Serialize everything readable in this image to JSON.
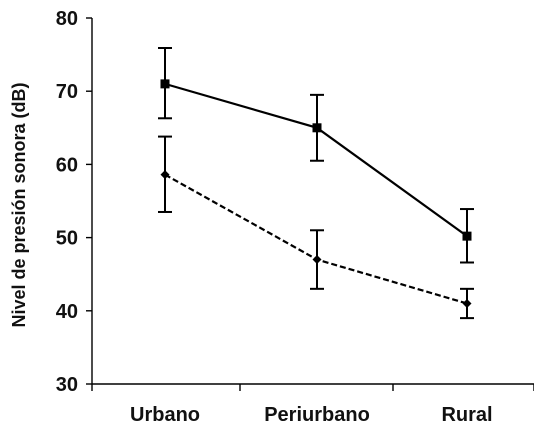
{
  "chart_data": {
    "type": "line",
    "title": "",
    "xlabel": "",
    "ylabel": "Nivel de presión sonora (dB)",
    "categories": [
      "Urbano",
      "Periurbano",
      "Rural"
    ],
    "ylim": [
      30,
      80
    ],
    "yticks": [
      30,
      40,
      50,
      60,
      70,
      80
    ],
    "grid": false,
    "legend": "none",
    "series": [
      {
        "style": "solid",
        "marker": "square",
        "color": "#000000",
        "values": [
          71,
          65,
          50.2
        ],
        "error": [
          [
            66.3,
            75.9
          ],
          [
            60.5,
            69.5
          ],
          [
            46.6,
            53.9
          ]
        ]
      },
      {
        "style": "dashed",
        "marker": "diamond",
        "color": "#000000",
        "values": [
          58.6,
          47,
          41
        ],
        "error": [
          [
            53.5,
            63.8
          ],
          [
            43,
            51
          ],
          [
            39,
            43
          ]
        ]
      }
    ]
  }
}
